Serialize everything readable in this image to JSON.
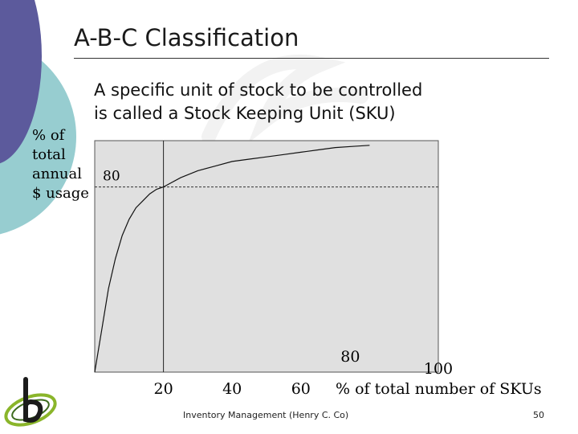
{
  "slide": {
    "title": "A-B-C Classification",
    "subtitle_line1": "A specific unit of stock to be controlled",
    "subtitle_line2": "is called a Stock Keeping Unit (SKU)",
    "footer": "Inventory Management (Henry C. Co)",
    "page_number": "50"
  },
  "colors": {
    "accent_purple": "#5c5a9c",
    "accent_teal": "#97cdd0",
    "plot_background": "#e0e0e0"
  },
  "chart_data": {
    "type": "line",
    "ylabel_lines": [
      "% of",
      "total",
      "annual",
      "$ usage"
    ],
    "xlabel": "% of total number of SKUs",
    "xlim": [
      0,
      100
    ],
    "ylim": [
      0,
      100
    ],
    "x_ticks": [
      {
        "value": 20,
        "label": "20"
      },
      {
        "value": 40,
        "label": "40"
      },
      {
        "value": 60,
        "label": "60"
      },
      {
        "value": 80,
        "label": "80"
      },
      {
        "value": 100,
        "label": "100"
      }
    ],
    "y_marker": {
      "value": 80,
      "label": "80"
    },
    "reference_lines": {
      "x": 20,
      "y": 80
    },
    "series": [
      {
        "x": [
          0,
          2,
          4,
          6,
          8,
          10,
          12,
          14,
          16,
          18,
          20,
          25,
          30,
          35,
          40,
          45,
          50,
          55,
          60,
          65,
          70,
          75,
          80
        ],
        "y": [
          0,
          18,
          36,
          49,
          59,
          66,
          71,
          74,
          77,
          79,
          80,
          84,
          87,
          89,
          91,
          92,
          93,
          94,
          95,
          96,
          97,
          97.5,
          98
        ]
      }
    ]
  }
}
